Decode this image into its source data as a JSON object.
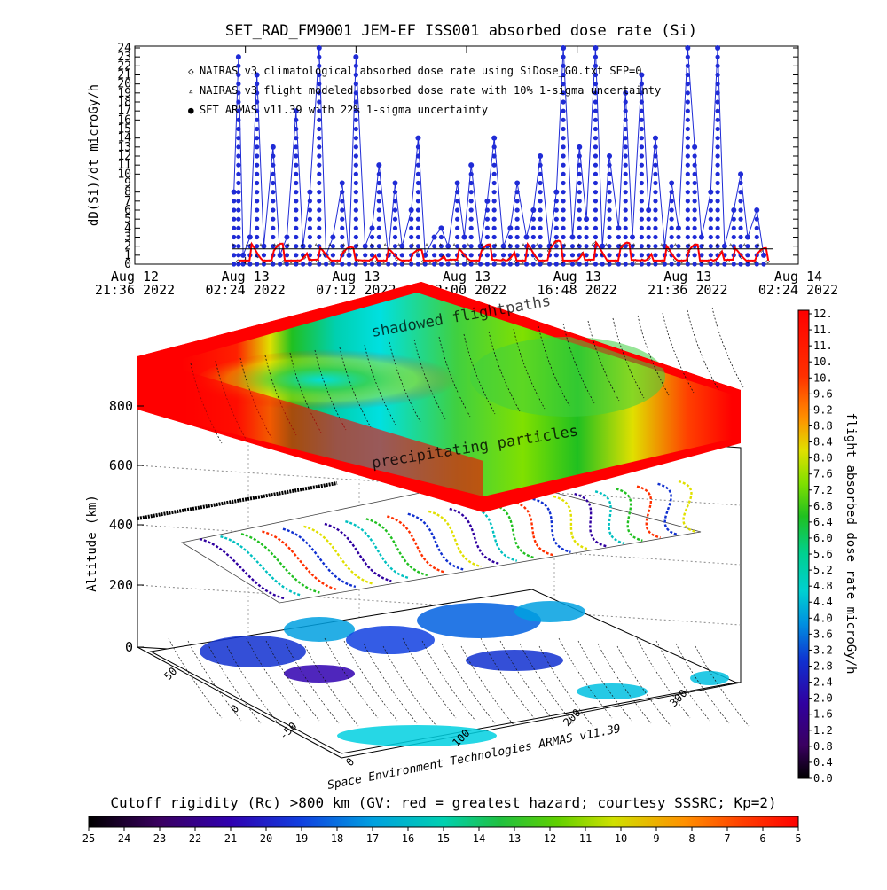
{
  "chart_data": [
    {
      "type": "line",
      "title": "SET_RAD_FM9001  JEM-EF ISS001 absorbed dose rate (Si)",
      "ylabel": "dD(Si)/dt microGy/h",
      "ylim": [
        0,
        24
      ],
      "yticks": [
        "0",
        "1",
        "2",
        "3",
        "4",
        "5",
        "6",
        "7",
        "8",
        "9",
        "10",
        "11",
        "12",
        "13",
        "14",
        "15",
        "16",
        "17",
        "18",
        "19",
        "20",
        "21",
        "22",
        "23",
        "24"
      ],
      "xticks": [
        {
          "date": "Aug 12",
          "time": "21:36 2022"
        },
        {
          "date": "Aug 13",
          "time": "02:24 2022"
        },
        {
          "date": "Aug 13",
          "time": "07:12 2022"
        },
        {
          "date": "Aug 13",
          "time": "12:00 2022"
        },
        {
          "date": "Aug 13",
          "time": "16:48 2022"
        },
        {
          "date": "Aug 13",
          "time": "21:36 2022"
        },
        {
          "date": "Aug 14",
          "time": "02:24 2022"
        }
      ],
      "legend": [
        {
          "label": "NAIRAS v3 climatological absorbed dose rate using SiDose_G0.txt SEP=0",
          "symbol": "◇",
          "color": "#ff0000"
        },
        {
          "label": "NAIRAS v3 flight modeled absorbed dose rate with 10% 1-sigma uncertainty",
          "symbol": "▵",
          "color": "#000000"
        },
        {
          "label": "SET ARMAS v11.39 with 22% 1-sigma uncertainty",
          "symbol": "●",
          "color": "#1f2bd6"
        }
      ],
      "legend_position": "top-left",
      "series": [
        {
          "name": "NAIRAS v3 climatological absorbed dose rate using SiDose_G0.txt SEP=0",
          "color": "#ff0000",
          "description_range": [
            0.3,
            2.8
          ],
          "x_hours": [
            4.5,
            5.0,
            5.5,
            6.0,
            6.5,
            7.0,
            7.5,
            8.0,
            8.5,
            9.0,
            9.5,
            10.0,
            10.5,
            11.0,
            11.5,
            12.0,
            12.5,
            13.0,
            13.5,
            14.0,
            14.5,
            15.0,
            15.5,
            16.0,
            16.5,
            17.0,
            17.5,
            18.0,
            18.5,
            19.0,
            19.5,
            20.0,
            20.5,
            21.0,
            21.5,
            22.0,
            22.5,
            23.0,
            23.5,
            24.0,
            24.5,
            25.0,
            25.5,
            26.0,
            26.5,
            27.0,
            27.5
          ],
          "values": [
            0.4,
            2.6,
            0.5,
            2.3,
            0.4,
            2.2,
            0.5,
            2.0,
            0.4,
            1.9,
            0.5,
            1.8,
            0.4,
            1.8,
            0.5,
            1.6,
            0.4,
            1.9,
            0.5,
            2.0,
            0.4,
            2.2,
            0.5,
            2.4,
            0.4,
            2.5,
            0.5,
            2.6,
            0.4,
            2.5,
            0.5,
            2.6,
            0.4,
            2.4,
            0.5,
            2.5,
            0.4,
            2.4,
            0.5,
            2.2,
            0.4,
            2.5,
            0.5,
            2.0,
            0.4,
            1.8,
            0.4
          ]
        },
        {
          "name": "SET ARMAS v11.39 with 22% 1-sigma uncertainty",
          "color": "#1f2bd6",
          "x_hours": [
            4.3,
            4.5,
            4.7,
            5.0,
            5.3,
            5.6,
            6.0,
            6.3,
            6.6,
            7.0,
            7.3,
            7.6,
            8.0,
            8.3,
            8.6,
            9.0,
            9.3,
            9.6,
            10.0,
            10.3,
            10.6,
            11.0,
            11.3,
            11.6,
            12.0,
            12.3,
            12.6,
            13.0,
            13.3,
            13.6,
            14.0,
            14.3,
            14.6,
            15.0,
            15.3,
            15.6,
            16.0,
            16.3,
            16.6,
            17.0,
            17.3,
            17.6,
            18.0,
            18.3,
            18.6,
            19.0,
            19.3,
            19.6,
            20.0,
            20.3,
            20.6,
            21.0,
            21.3,
            21.6,
            22.0,
            22.3,
            22.6,
            23.0,
            23.3,
            23.6,
            24.0,
            24.3,
            24.6,
            25.0,
            25.3,
            25.6,
            26.0,
            26.3,
            26.6,
            27.0,
            27.3
          ],
          "values": [
            8,
            23,
            1,
            3,
            21,
            2,
            13,
            1,
            3,
            17,
            2,
            8,
            24,
            1,
            3,
            9,
            1,
            23,
            2,
            4,
            11,
            1,
            9,
            2,
            6,
            14,
            1,
            3,
            4,
            2,
            9,
            3,
            11,
            2,
            7,
            14,
            2,
            4,
            9,
            3,
            6,
            12,
            2,
            8,
            24,
            3,
            13,
            5,
            24,
            2,
            12,
            4,
            19,
            3,
            21,
            6,
            14,
            2,
            9,
            4,
            24,
            13,
            3,
            8,
            24,
            2,
            6,
            10,
            3,
            6,
            1
          ]
        }
      ],
      "x_range_hours": [
        0,
        28.8
      ],
      "note_x_origin": "Aug 12 21:36 2022"
    },
    {
      "type": "heatmap",
      "title": "",
      "zlabel": "Altitude (km)",
      "zticks": [
        "0",
        "200",
        "400",
        "600",
        "800"
      ],
      "lat_ticks": [
        "50",
        "0",
        "-50"
      ],
      "lon_ticks": [
        "0",
        "100",
        "200",
        "300"
      ],
      "annotations": [
        "shadowed flightpaths",
        "precipitating particles"
      ],
      "credit": "Space Environment Technologies ARMAS v11.39"
    },
    {
      "type": "heatmap",
      "colorbar": "right",
      "label": "flight absorbed dose rate microGy/h",
      "ticks": [
        "12.",
        "11.",
        "11.",
        "10.",
        "10.",
        "9.6",
        "9.2",
        "8.8",
        "8.4",
        "8.0",
        "7.6",
        "7.2",
        "6.8",
        "6.4",
        "6.0",
        "5.6",
        "5.2",
        "4.8",
        "4.4",
        "4.0",
        "3.6",
        "3.2",
        "2.8",
        "2.4",
        "2.0",
        "1.6",
        "1.2",
        "0.8",
        "0.4",
        "0.0"
      ]
    },
    {
      "type": "heatmap",
      "colorbar": "bottom",
      "label": "Cutoff rigidity (Rc) >800 km (GV: red = greatest hazard; courtesy SSSRC; Kp=2)",
      "ticks": [
        "25",
        "24",
        "23",
        "22",
        "21",
        "20",
        "19",
        "18",
        "17",
        "16",
        "15",
        "14",
        "13",
        "12",
        "11",
        "10",
        "9",
        "8",
        "7",
        "6",
        "5"
      ]
    }
  ],
  "colors": {
    "navy": "#1f2bd6",
    "red": "#ff0000",
    "nairas_flight": "#000000"
  }
}
